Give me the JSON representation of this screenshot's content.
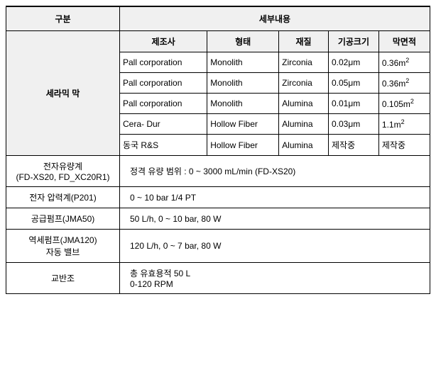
{
  "header": {
    "col1": "구분",
    "col2": "세부내용"
  },
  "ceramic": {
    "label": "세라믹 막",
    "sub_headers": {
      "mfr": "제조사",
      "form": "형태",
      "material": "재질",
      "pore": "기공크기",
      "area": "막면적"
    },
    "rows": [
      {
        "mfr": "Pall corporation",
        "form": "Monolith",
        "material": "Zirconia",
        "pore": "0.02μm",
        "area": "0.36m",
        "area_sup": "2"
      },
      {
        "mfr": "Pall corporation",
        "form": "Monolith",
        "material": "Zirconia",
        "pore": "0.05μm",
        "area": "0.36m",
        "area_sup": "2"
      },
      {
        "mfr": "Pall corporation",
        "form": "Monolith",
        "material": "Alumina",
        "pore": "0.01μm",
        "area": "0.105m",
        "area_sup": "2"
      },
      {
        "mfr": "Cera- Dur",
        "form": "Hollow Fiber",
        "material": "Alumina",
        "pore": "0.03μm",
        "area": "1.1m",
        "area_sup": "2"
      },
      {
        "mfr": "동국 R&S",
        "form": "Hollow Fiber",
        "material": "Alumina",
        "pore": "제작중",
        "area": "제작중",
        "area_sup": ""
      }
    ]
  },
  "items": [
    {
      "label_line1": "전자유량계",
      "label_line2": "(FD-XS20, FD_XC20R1)",
      "detail": "정격 유량 범위 : 0 ~ 3000 mL/min (FD-XS20)"
    },
    {
      "label_line1": "전자 압력계(P201)",
      "label_line2": "",
      "detail": "0 ~ 10 bar 1/4 PT"
    },
    {
      "label_line1": "공급펌프(JMA50)",
      "label_line2": "",
      "detail": "50 L/h, 0 ~ 10 bar, 80 W"
    },
    {
      "label_line1": "역세펌프(JMA120)",
      "label_line2": "자동 밸브",
      "detail": "120 L/h, 0 ~ 7 bar, 80 W"
    },
    {
      "label_line1": "교반조",
      "label_line2": "",
      "detail_line1": "총 유효용적 50 L",
      "detail_line2": "0-120 RPM"
    }
  ],
  "colors": {
    "background": "#ffffff",
    "border": "#000000",
    "header_bg": "#f0f0f0"
  }
}
